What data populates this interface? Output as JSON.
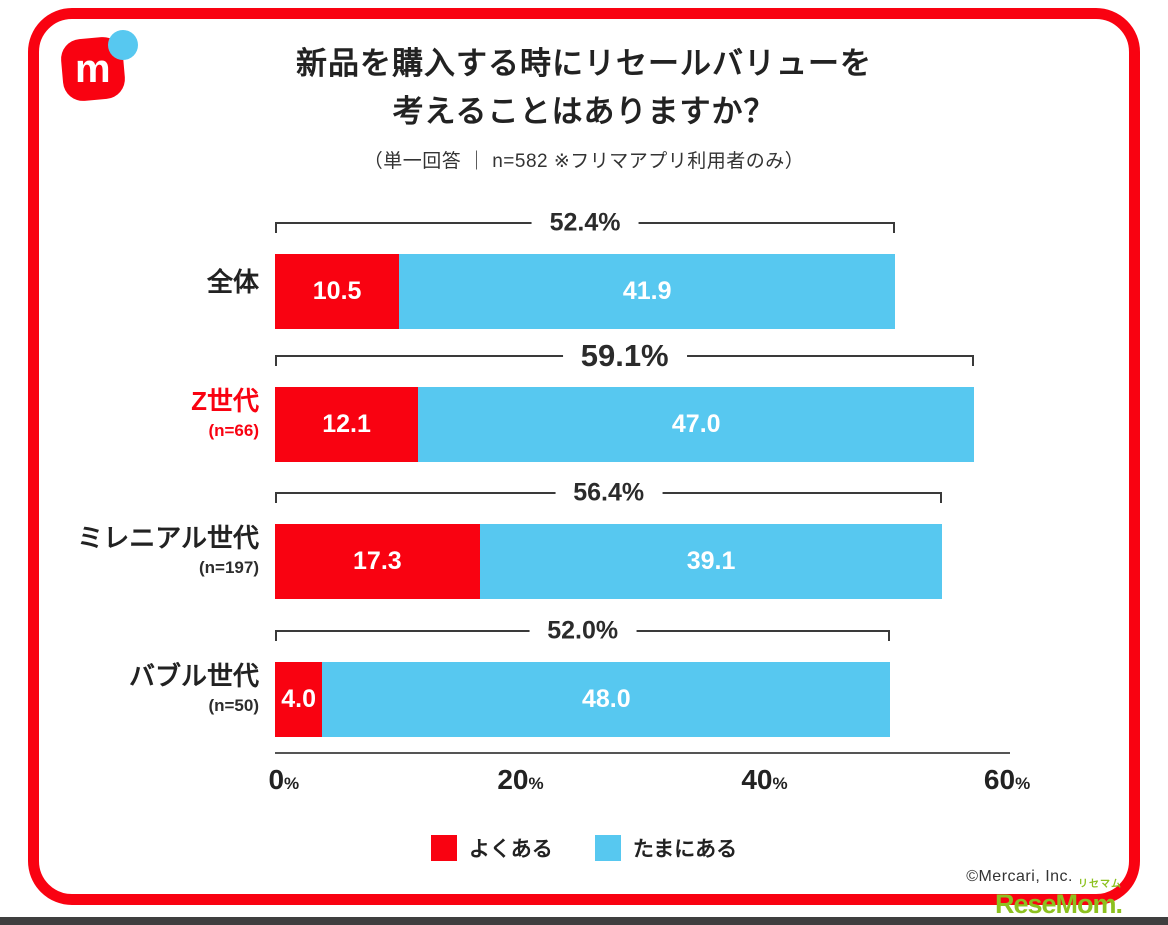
{
  "colors": {
    "accent_red": "#f90211",
    "sky_blue": "#57c8f0",
    "text_dark": "#2d2d2d",
    "resemom_green": "#8cc11f"
  },
  "header": {
    "logo_letter": "m",
    "title_line1": "新品を購入する時にリセールバリューを",
    "title_line2": "考えることはありますか？",
    "subtitle": "（単一回答 ｜ n=582 ※フリマアプリ利用者のみ）"
  },
  "chart_data": {
    "type": "bar",
    "orientation": "horizontal",
    "stacked": true,
    "xlim": [
      0,
      60
    ],
    "x_tick_values": [
      "0",
      "20",
      "40",
      "60"
    ],
    "x_tick_suffix": "%",
    "grid": false,
    "legend_position": "bottom",
    "categories": [
      "全体",
      "Z世代",
      "ミレニアル世代",
      "バブル世代"
    ],
    "category_notes": [
      "",
      "(n=66)",
      "(n=197)",
      "(n=50)"
    ],
    "totals": [
      "52.4%",
      "59.1%",
      "56.4%",
      "52.0%"
    ],
    "series": [
      {
        "name": "よくある",
        "color": "#f90211",
        "values": [
          "10.5",
          "12.1",
          "17.3",
          "4.0"
        ]
      },
      {
        "name": "たまにある",
        "color": "#57c8f0",
        "values": [
          "41.9",
          "47.0",
          "39.1",
          "48.0"
        ]
      }
    ]
  },
  "footer": {
    "copyright": "©Mercari, Inc.",
    "watermark_sub": "リセマム",
    "watermark_main": "ReseMom."
  }
}
